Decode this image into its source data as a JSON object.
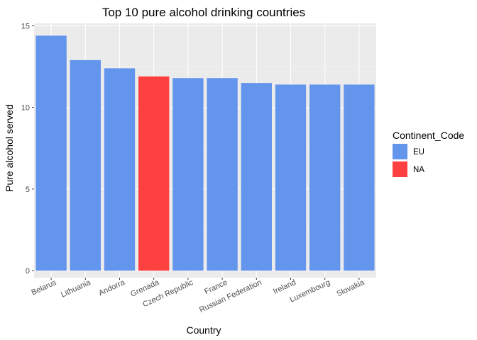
{
  "chart_data": {
    "type": "bar",
    "title": "Top 10 pure alcohol drinking countries",
    "xlabel": "Country",
    "ylabel": "Pure alcohol served",
    "categories": [
      "Belarus",
      "Lithuania",
      "Andorra",
      "Grenada",
      "Czech Republic",
      "France",
      "Russian Federation",
      "Ireland",
      "Luxembourg",
      "Slovakia"
    ],
    "values": [
      14.4,
      12.9,
      12.4,
      11.9,
      11.8,
      11.8,
      11.5,
      11.4,
      11.4,
      11.4
    ],
    "group": [
      "EU",
      "EU",
      "EU",
      "NA",
      "EU",
      "EU",
      "EU",
      "EU",
      "EU",
      "EU"
    ],
    "ylim": [
      0,
      15
    ],
    "yticks": [
      0,
      5,
      10,
      15
    ],
    "grid": true,
    "legend": {
      "title": "Continent_Code",
      "placement": "right",
      "entries": [
        {
          "label": "EU",
          "color": "#6495ED"
        },
        {
          "label": "NA",
          "color": "#FF4040"
        }
      ]
    }
  },
  "colors": {
    "panel_background": "#EBEBEB",
    "grid_major": "#FFFFFF",
    "grid_minor": "#F5F5F5"
  }
}
